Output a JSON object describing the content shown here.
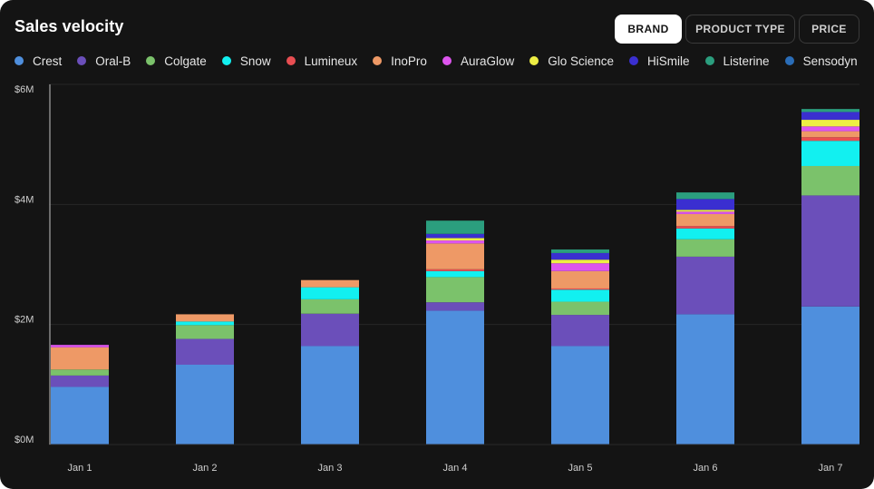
{
  "header": {
    "title": "Sales velocity"
  },
  "tabs": [
    {
      "label": "BRAND",
      "active": true
    },
    {
      "label": "PRODUCT TYPE",
      "active": false
    },
    {
      "label": "PRICE",
      "active": false
    }
  ],
  "chart_data": {
    "type": "bar",
    "stacked": true,
    "title": "Sales velocity",
    "xlabel": "",
    "ylabel": "",
    "ylim": [
      0,
      6000000
    ],
    "y_ticks": [
      {
        "value": 0,
        "label": "$0M"
      },
      {
        "value": 2000000,
        "label": "$2M"
      },
      {
        "value": 4000000,
        "label": "$4M"
      },
      {
        "value": 6000000,
        "label": "$6M"
      }
    ],
    "grid": true,
    "legend_position": "top-left",
    "categories": [
      "Jan 1",
      "Jan 2",
      "Jan 3",
      "Jan 4",
      "Jan 5",
      "Jan 6",
      "Jan 7"
    ],
    "series": [
      {
        "name": "Crest",
        "color": "#4f8fdd",
        "values": [
          960000,
          1330000,
          1640000,
          2230000,
          1640000,
          2170000,
          2300000
        ]
      },
      {
        "name": "Oral-B",
        "color": "#6b4fba",
        "values": [
          190000,
          430000,
          540000,
          140000,
          520000,
          960000,
          1850000
        ]
      },
      {
        "name": "Colgate",
        "color": "#7bc26b",
        "values": [
          100000,
          230000,
          240000,
          420000,
          220000,
          290000,
          490000
        ]
      },
      {
        "name": "Snow",
        "color": "#12f0f0",
        "values": [
          0,
          60000,
          200000,
          100000,
          200000,
          180000,
          420000
        ]
      },
      {
        "name": "Lumineux",
        "color": "#e84e52",
        "values": [
          0,
          0,
          0,
          30000,
          20000,
          40000,
          60000
        ]
      },
      {
        "name": "InoPro",
        "color": "#ee9966",
        "values": [
          370000,
          120000,
          120000,
          430000,
          290000,
          200000,
          100000
        ]
      },
      {
        "name": "AuraGlow",
        "color": "#dd55ee",
        "values": [
          40000,
          0,
          0,
          50000,
          130000,
          40000,
          80000
        ]
      },
      {
        "name": "Glo Science",
        "color": "#eeee44",
        "values": [
          0,
          0,
          0,
          40000,
          60000,
          30000,
          110000
        ]
      },
      {
        "name": "HiSmile",
        "color": "#3a2fd0",
        "values": [
          0,
          0,
          0,
          70000,
          110000,
          180000,
          130000
        ]
      },
      {
        "name": "Listerine",
        "color": "#2b9e7e",
        "values": [
          0,
          0,
          0,
          220000,
          60000,
          110000,
          50000
        ]
      },
      {
        "name": "Sensodyne",
        "color": "#2a6db8",
        "values": [
          0,
          0,
          0,
          0,
          0,
          0,
          0
        ]
      }
    ]
  }
}
